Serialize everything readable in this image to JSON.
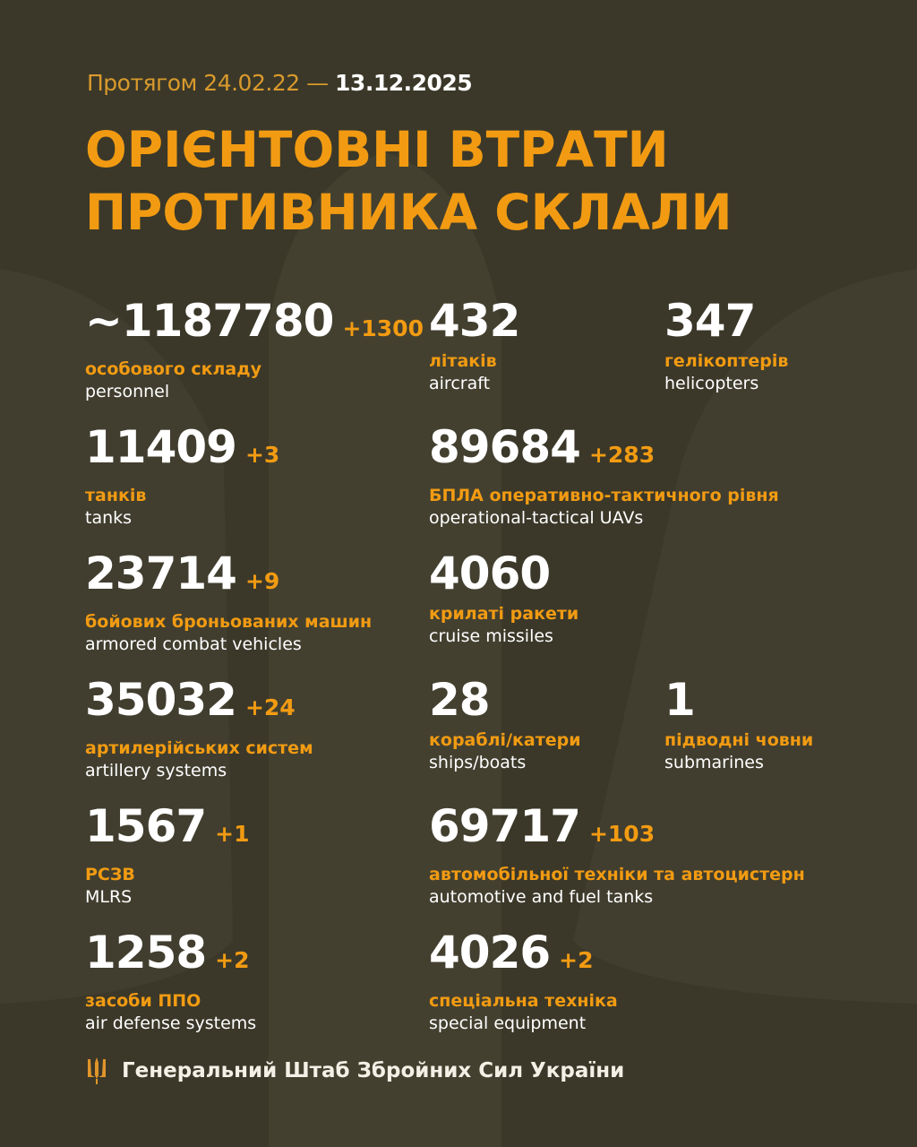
{
  "header": {
    "subtitle_prefix": "Протягом 24.02.22 —",
    "subtitle_date": "13.12.2025",
    "title_line1": "ОРІЄНТОВНІ ВТРАТИ",
    "title_line2": "ПРОТИВНИКА СКЛАЛИ"
  },
  "stats": [
    {
      "value": "~1187780",
      "delta": "+1300",
      "ua": "особового складу",
      "en": "personnel"
    },
    {
      "value": "432",
      "delta": "",
      "ua": "літаків",
      "en": "aircraft"
    },
    {
      "value": "347",
      "delta": "",
      "ua": "гелікоптерів",
      "en": "helicopters"
    },
    {
      "value": "11409",
      "delta": "+3",
      "ua": "танків",
      "en": "tanks"
    },
    {
      "value": "89684",
      "delta": "+283",
      "ua": "БПЛА оперативно-тактичного рівня",
      "en": "operational-tactical UAVs"
    },
    {
      "value": "23714",
      "delta": "+9",
      "ua": "бойових броньованих машин",
      "en": "armored combat vehicles"
    },
    {
      "value": "4060",
      "delta": "",
      "ua": "крилаті ракети",
      "en": "cruise missiles"
    },
    {
      "value": "35032",
      "delta": "+24",
      "ua": "артилерійських систем",
      "en": "artillery systems"
    },
    {
      "value": "28",
      "delta": "",
      "ua": "кораблі/катери",
      "en": "ships/boats"
    },
    {
      "value": "1",
      "delta": "",
      "ua": "підводні човни",
      "en": "submarines"
    },
    {
      "value": "1567",
      "delta": "+1",
      "ua": "РСЗВ",
      "en": "MLRS"
    },
    {
      "value": "69717",
      "delta": "+103",
      "ua": "автомобільної техніки та автоцистерн",
      "en": "automotive and fuel tanks"
    },
    {
      "value": "1258",
      "delta": "+2",
      "ua": "засоби ППО",
      "en": "air defense systems"
    },
    {
      "value": "4026",
      "delta": "+2",
      "ua": "спеціальна техніка",
      "en": "special equipment"
    }
  ],
  "footer": {
    "text": "Генеральний Штаб Збройних Сил України",
    "icon": "trident-icon"
  },
  "colors": {
    "background": "#3b3829",
    "accent": "#f29b12",
    "text": "#ffffff"
  }
}
